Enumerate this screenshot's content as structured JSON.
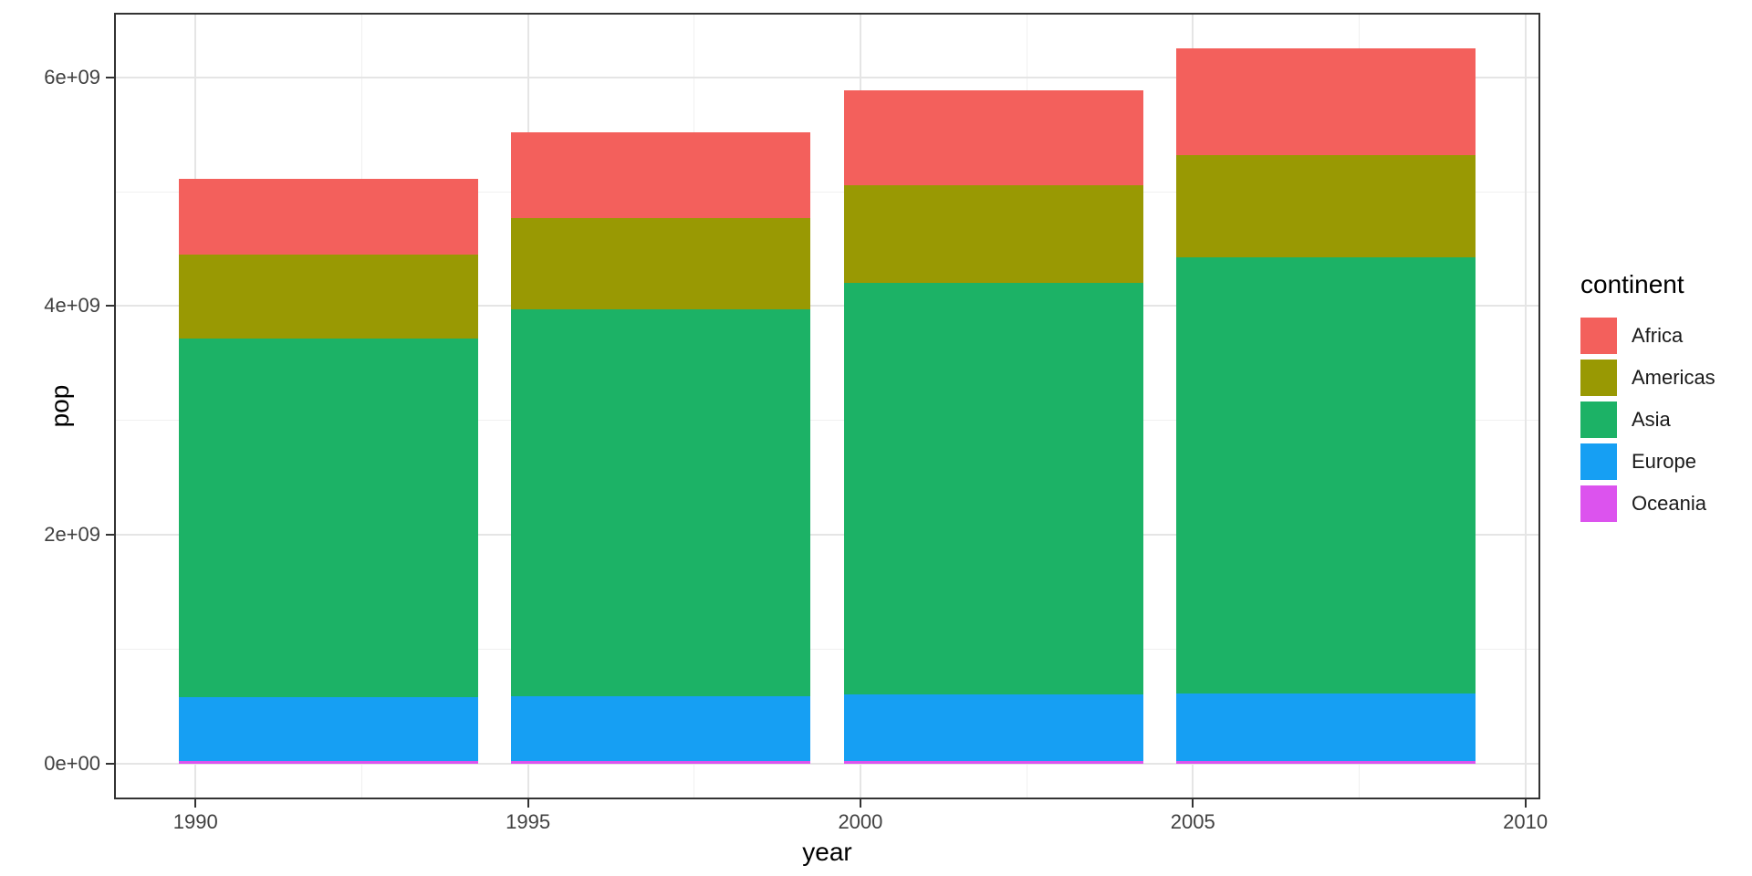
{
  "chart_data": {
    "type": "bar",
    "stacked": true,
    "stack_order": "first_series_on_top",
    "xlabel": "year",
    "ylabel": "pop",
    "legend_title": "continent",
    "legend_position": "right",
    "grid": true,
    "categories": [
      1992,
      1997,
      2002,
      2007
    ],
    "bar_width_x_units": 4.5,
    "series": [
      {
        "name": "Africa",
        "color": "#F3605C",
        "values": [
          659081517,
          743832984,
          833723916,
          929539692
        ]
      },
      {
        "name": "Americas",
        "color": "#999903",
        "values": [
          739274104,
          796900410,
          849772762,
          898871184
        ]
      },
      {
        "name": "Asia",
        "color": "#1CB266",
        "values": [
          3133292191,
          3383285500,
          3601802203,
          3811953827
        ]
      },
      {
        "name": "Europe",
        "color": "#169FF3",
        "values": [
          558142797,
          568944148,
          578223869,
          586098529
        ]
      },
      {
        "name": "Oceania",
        "color": "#DC53EE",
        "values": [
          20919651,
          22241430,
          23454829,
          24549947
        ]
      }
    ],
    "totals": [
      5110710260,
      5515204472,
      5886977579,
      6251013179
    ],
    "x_ticks": {
      "values": [
        1990,
        1995,
        2000,
        2005,
        2010
      ],
      "labels": [
        "1990",
        "1995",
        "2000",
        "2005",
        "2010"
      ]
    },
    "x_minor_ticks": [
      1992.5,
      1997.5,
      2002.5,
      2007.5
    ],
    "y_ticks": {
      "values": [
        0,
        2000000000,
        4000000000,
        6000000000
      ],
      "labels": [
        "0e+00",
        "2e+09",
        "4e+09",
        "6e+09"
      ]
    },
    "y_minor_ticks": [
      1000000000,
      3000000000,
      5000000000
    ],
    "xlim": [
      1988.775,
      2010.225
    ],
    "ylim": [
      -312550659,
      6563563838
    ]
  }
}
